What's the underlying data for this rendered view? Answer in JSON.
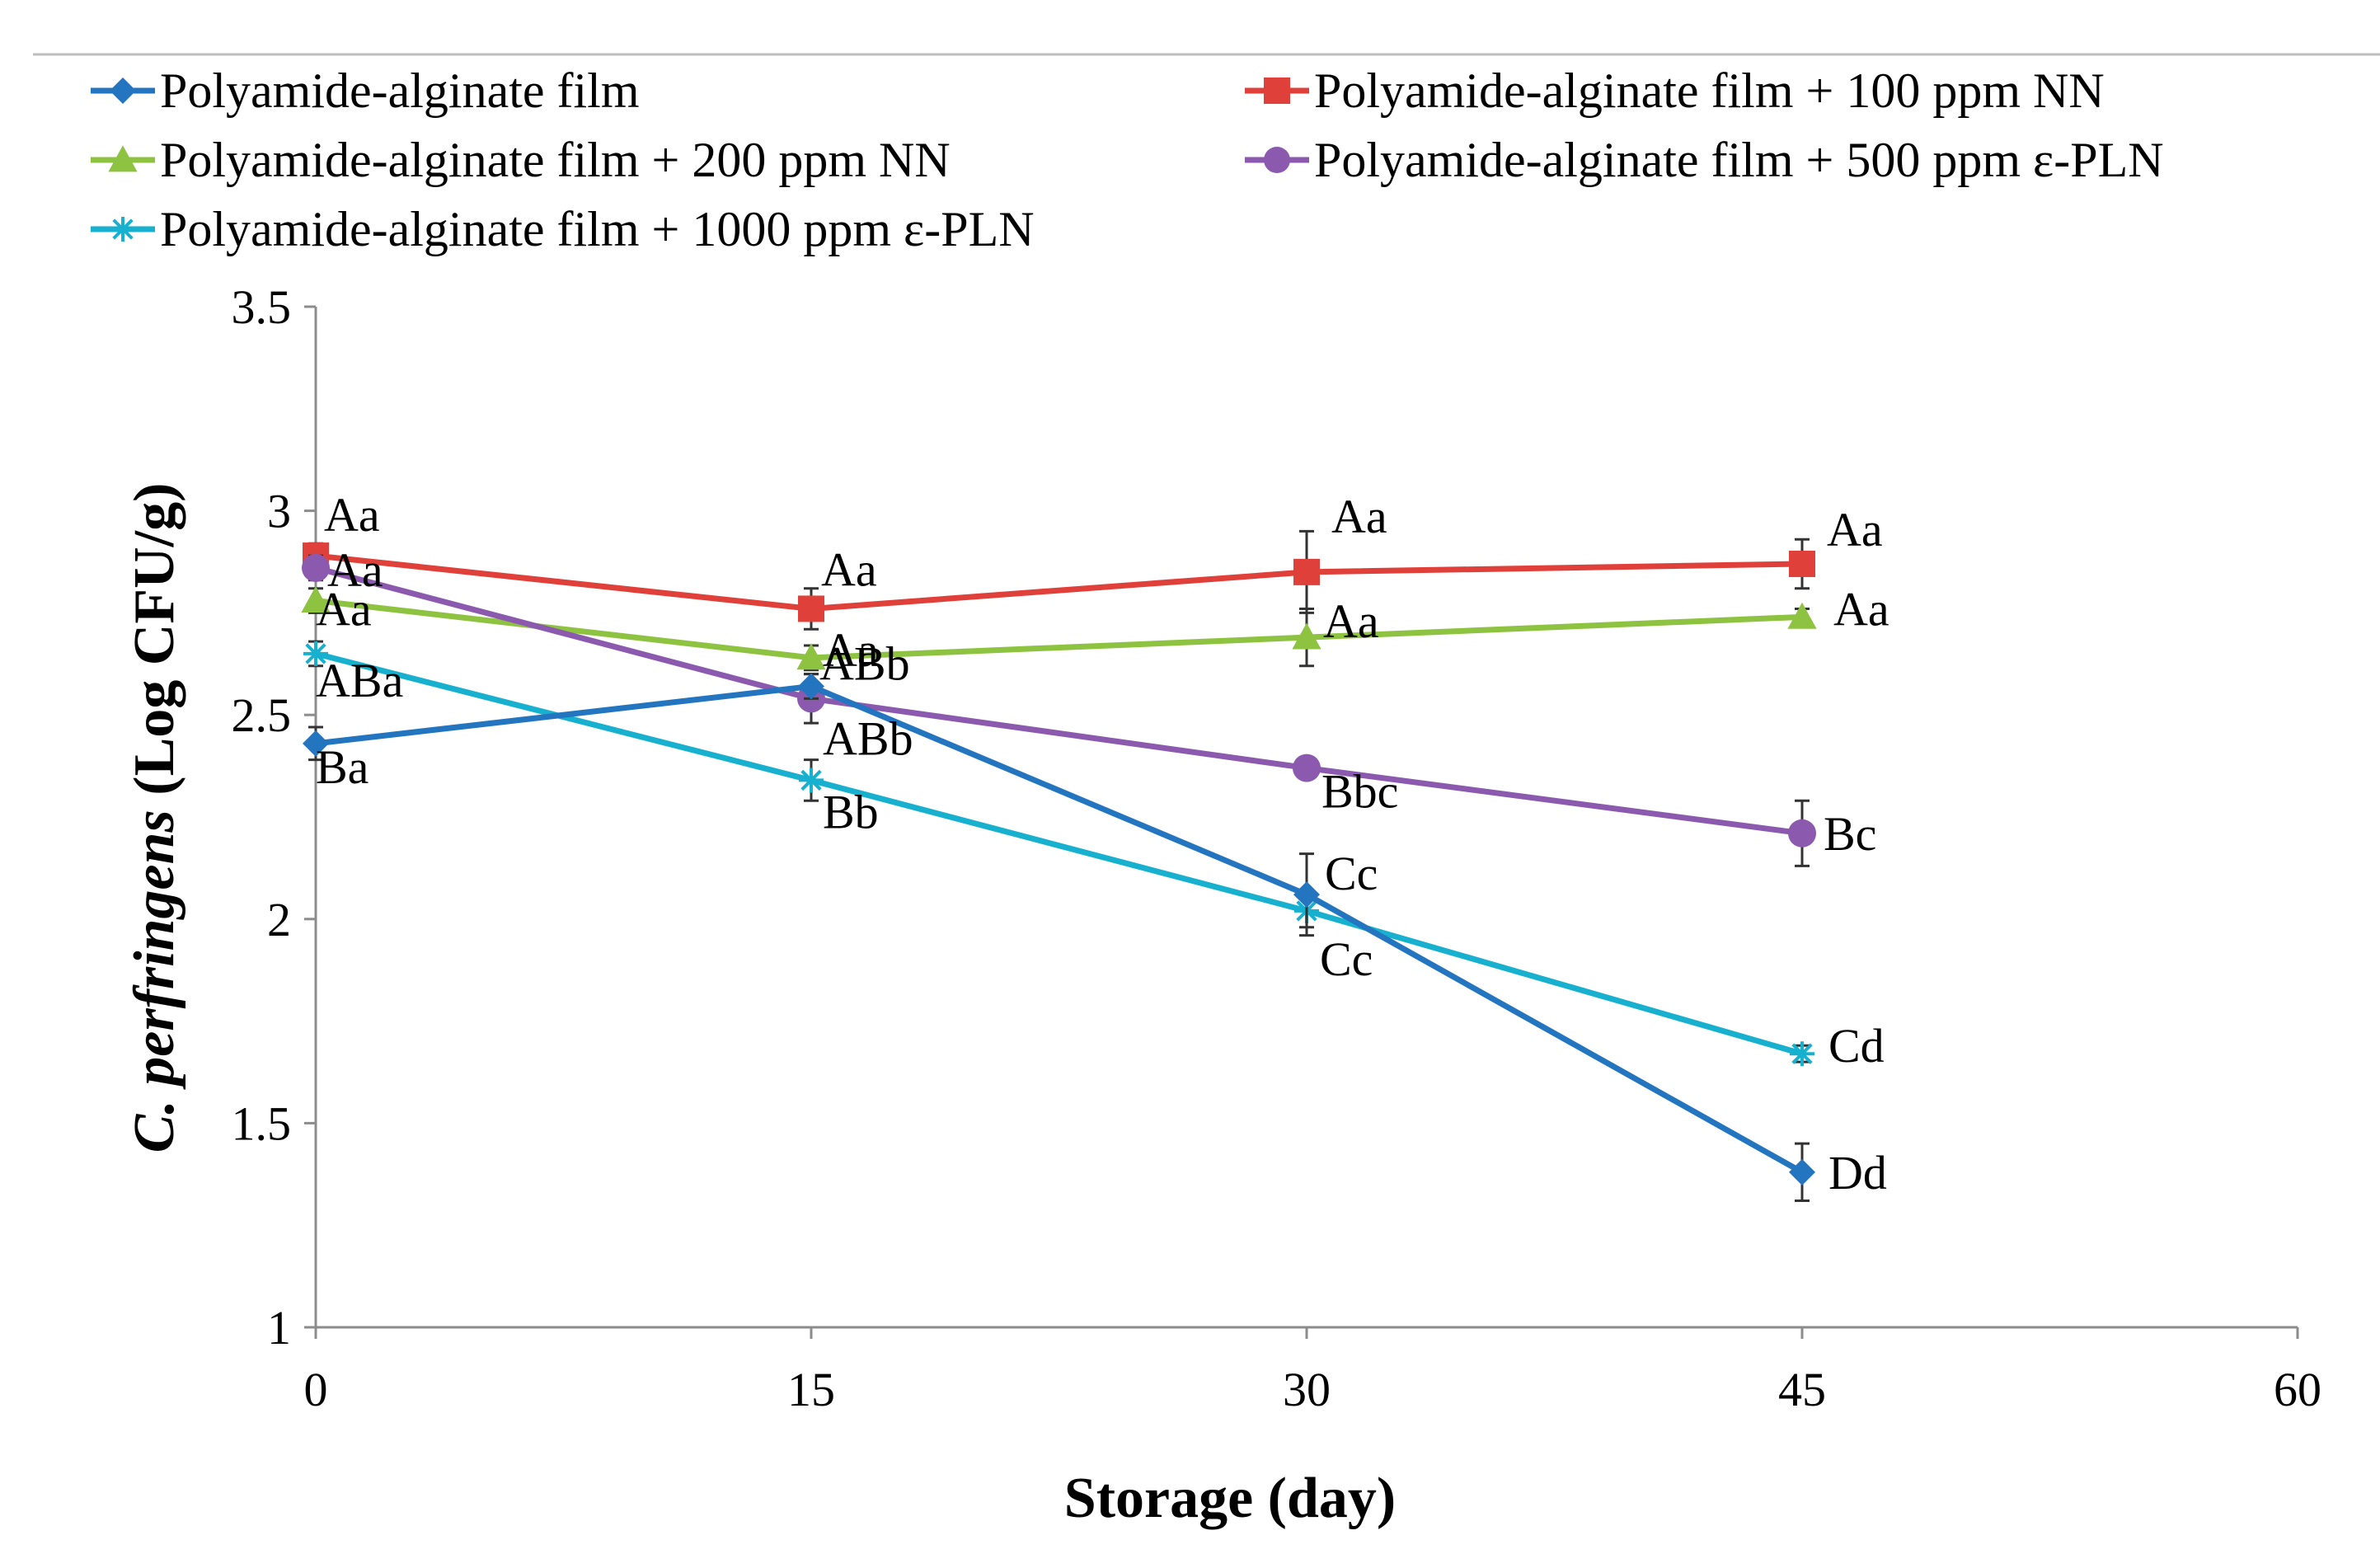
{
  "chart_data": {
    "type": "line",
    "title": "",
    "xlabel": "Storage (day)",
    "ylabel_italic": "C. perfringens",
    "ylabel_rest": " (Log CFU/g)",
    "xlim": [
      0,
      60
    ],
    "ylim": [
      1,
      3.5
    ],
    "xticks": [
      0,
      15,
      30,
      45,
      60
    ],
    "yticks": [
      1,
      1.5,
      2,
      2.5,
      3,
      3.5
    ],
    "ytick_labels": [
      "1",
      "1.5",
      "2",
      "2.5",
      "3",
      "3.5"
    ],
    "grid": false,
    "legend_position": "top",
    "x": [
      0,
      15,
      30,
      45
    ],
    "series": [
      {
        "name": "Polyamide-alginate film",
        "color": "#2475C0",
        "marker": "diamond",
        "values": [
          2.43,
          2.57,
          2.06,
          1.38
        ],
        "errors": [
          0.04,
          0.03,
          0.1,
          0.07
        ],
        "labels": [
          "Ba",
          "ABb",
          "Cc",
          "Dd"
        ]
      },
      {
        "name": "Polyamide-alginate film + 100 ppm NN",
        "color": "#E0403A",
        "marker": "square",
        "values": [
          2.89,
          2.76,
          2.85,
          2.87
        ],
        "errors": [
          0.03,
          0.05,
          0.1,
          0.06
        ],
        "labels": [
          "Aa",
          "Aa",
          "Aa",
          "Aa"
        ]
      },
      {
        "name": "Polyamide-alginate film + 200 ppm NN",
        "color": "#8DC341",
        "marker": "triangle",
        "values": [
          2.78,
          2.64,
          2.69,
          2.74
        ],
        "errors": [
          0.03,
          0.03,
          0.07,
          0.02
        ],
        "labels": [
          "Aa",
          "Aa",
          "Aa",
          "Aa"
        ]
      },
      {
        "name": "Polyamide-alginate film + 500 ppm ε-PLN",
        "color": "#8B5AAE",
        "marker": "circle",
        "values": [
          2.86,
          2.54,
          2.37,
          2.21
        ],
        "errors": [
          0.03,
          0.06,
          0.02,
          0.08
        ],
        "labels": [
          "Aa",
          "ABb",
          "Bbc",
          "Bc"
        ]
      },
      {
        "name": "Polyamide-alginate film + 1000 ppm ε-PLN",
        "color": "#17B0CE",
        "marker": "star",
        "values": [
          2.65,
          2.34,
          2.02,
          1.67
        ],
        "errors": [
          0.03,
          0.05,
          0.04,
          0.02
        ],
        "labels": [
          "ABa",
          "Bb",
          "Cc",
          "Cd"
        ]
      }
    ]
  }
}
